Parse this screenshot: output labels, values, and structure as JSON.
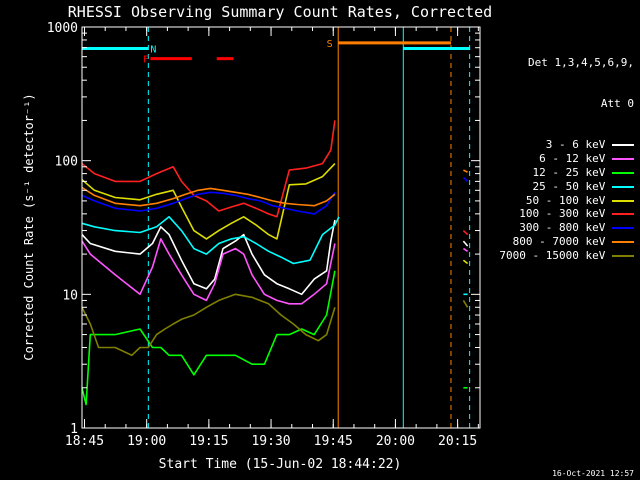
{
  "chart_data": {
    "type": "line",
    "title": "RHESSI Observing Summary Count Rates, Corrected",
    "xlabel": "Start Time (15-Jun-02 18:44:22)",
    "ylabel": "Corrected Count Rate (s⁻¹ detector⁻¹)",
    "x_unit": "minutes after 18:44:22",
    "xlim": [
      0,
      96
    ],
    "ylim": [
      1,
      1000
    ],
    "y_scale": "log",
    "x_ticks": [
      {
        "t": 0.6,
        "label": "18:45"
      },
      {
        "t": 15.6,
        "label": "19:00"
      },
      {
        "t": 30.6,
        "label": "19:15"
      },
      {
        "t": 45.6,
        "label": "19:30"
      },
      {
        "t": 60.6,
        "label": "19:45"
      },
      {
        "t": 75.6,
        "label": "20:00"
      },
      {
        "t": 90.6,
        "label": "20:15"
      }
    ],
    "y_ticks": [
      {
        "v": 1,
        "label": "1"
      },
      {
        "v": 10,
        "label": "10"
      },
      {
        "v": 100,
        "label": "100"
      },
      {
        "v": 1000,
        "label": "1000"
      }
    ],
    "legend_header": [
      "Det 1,3,4,5,6,9,",
      "Att 0"
    ],
    "legend_position": "right",
    "series": [
      {
        "name": "3 - 6 keV",
        "color": "#ffffff",
        "segments": [
          [
            [
              0,
              28
            ],
            [
              2,
              24
            ],
            [
              8,
              21
            ],
            [
              14,
              20
            ],
            [
              17,
              24
            ],
            [
              19,
              32
            ],
            [
              21,
              28
            ],
            [
              24,
              18
            ],
            [
              27,
              12
            ],
            [
              30,
              11
            ],
            [
              32,
              13
            ],
            [
              34,
              22
            ],
            [
              37,
              25
            ],
            [
              39,
              28
            ],
            [
              41,
              20
            ],
            [
              44,
              14
            ],
            [
              47,
              12
            ],
            [
              50,
              11
            ],
            [
              53,
              10
            ],
            [
              56,
              13
            ],
            [
              59,
              15
            ],
            [
              60,
              25
            ],
            [
              61,
              36
            ]
          ],
          [
            [
              92,
              25
            ],
            [
              93,
              23
            ]
          ]
        ]
      },
      {
        "name": "6 - 12 keV",
        "color": "#ff55ff",
        "segments": [
          [
            [
              0,
              25
            ],
            [
              2,
              20
            ],
            [
              8,
              14
            ],
            [
              14,
              10
            ],
            [
              17,
              16
            ],
            [
              19,
              26
            ],
            [
              21,
              20
            ],
            [
              24,
              14
            ],
            [
              27,
              10
            ],
            [
              30,
              9
            ],
            [
              32,
              12
            ],
            [
              34,
              20
            ],
            [
              37,
              22
            ],
            [
              39,
              20
            ],
            [
              41,
              14
            ],
            [
              44,
              10
            ],
            [
              47,
              9
            ],
            [
              50,
              8.5
            ],
            [
              53,
              8.5
            ],
            [
              56,
              10
            ],
            [
              59,
              12
            ],
            [
              61,
              24
            ]
          ],
          [
            [
              92,
              22
            ],
            [
              93,
              21
            ]
          ]
        ]
      },
      {
        "name": "12 - 25 keV",
        "color": "#00ff00",
        "segments": [
          [
            [
              0,
              2
            ],
            [
              1,
              1.5
            ],
            [
              2,
              5
            ],
            [
              8,
              5
            ],
            [
              14,
              5.5
            ],
            [
              17,
              4
            ],
            [
              19,
              4
            ],
            [
              21,
              3.5
            ],
            [
              24,
              3.5
            ],
            [
              27,
              2.5
            ],
            [
              30,
              3.5
            ],
            [
              33,
              3.5
            ],
            [
              37,
              3.5
            ],
            [
              41,
              3
            ],
            [
              44,
              3
            ],
            [
              47,
              5
            ],
            [
              50,
              5
            ],
            [
              53,
              5.5
            ],
            [
              56,
              5
            ],
            [
              59,
              7
            ],
            [
              61,
              15
            ]
          ],
          [
            [
              92,
              2
            ],
            [
              93,
              2
            ]
          ]
        ]
      },
      {
        "name": "25 - 50 keV",
        "color": "#00ffff",
        "segments": [
          [
            [
              0,
              34
            ],
            [
              3,
              32
            ],
            [
              8,
              30
            ],
            [
              14,
              29
            ],
            [
              18,
              32
            ],
            [
              21,
              38
            ],
            [
              24,
              30
            ],
            [
              27,
              22
            ],
            [
              30,
              20
            ],
            [
              33,
              24
            ],
            [
              36,
              26
            ],
            [
              39,
              27
            ],
            [
              42,
              24
            ],
            [
              45,
              21
            ],
            [
              48,
              19
            ],
            [
              51,
              17
            ],
            [
              55,
              18
            ],
            [
              58,
              28
            ],
            [
              61,
              33
            ],
            [
              62,
              38
            ]
          ],
          [
            [
              92,
              10
            ],
            [
              93,
              10
            ]
          ]
        ]
      },
      {
        "name": "50 - 100 keV",
        "color": "#dddd00",
        "segments": [
          [
            [
              0,
              72
            ],
            [
              3,
              60
            ],
            [
              8,
              53
            ],
            [
              14,
              51
            ],
            [
              18,
              56
            ],
            [
              22,
              60
            ],
            [
              24,
              45
            ],
            [
              27,
              30
            ],
            [
              30,
              26
            ],
            [
              33,
              30
            ],
            [
              36,
              34
            ],
            [
              39,
              38
            ],
            [
              42,
              33
            ],
            [
              45,
              28
            ],
            [
              47,
              26
            ],
            [
              50,
              66
            ],
            [
              54,
              67
            ],
            [
              58,
              76
            ],
            [
              61,
              95
            ]
          ],
          [
            [
              92,
              18
            ],
            [
              93,
              17
            ]
          ]
        ]
      },
      {
        "name": "100 - 300 keV",
        "color": "#ff2020",
        "segments": [
          [
            [
              0,
              95
            ],
            [
              3,
              80
            ],
            [
              8,
              70
            ],
            [
              14,
              70
            ],
            [
              18,
              80
            ],
            [
              22,
              90
            ],
            [
              24,
              70
            ],
            [
              27,
              55
            ],
            [
              30,
              50
            ],
            [
              33,
              42
            ],
            [
              36,
              45
            ],
            [
              39,
              48
            ],
            [
              42,
              44
            ],
            [
              45,
              40
            ],
            [
              47,
              38
            ],
            [
              50,
              85
            ],
            [
              54,
              88
            ],
            [
              58,
              95
            ],
            [
              60,
              120
            ],
            [
              61,
              200
            ]
          ],
          [
            [
              92,
              30
            ],
            [
              93,
              28
            ]
          ]
        ]
      },
      {
        "name": "300 - 800 keV",
        "color": "#0000ff",
        "segments": [
          [
            [
              0,
              55
            ],
            [
              3,
              50
            ],
            [
              8,
              44
            ],
            [
              14,
              42
            ],
            [
              18,
              44
            ],
            [
              22,
              48
            ],
            [
              25,
              52
            ],
            [
              28,
              56
            ],
            [
              31,
              58
            ],
            [
              34,
              57
            ],
            [
              37,
              55
            ],
            [
              40,
              52
            ],
            [
              43,
              50
            ],
            [
              46,
              46
            ],
            [
              49,
              44
            ],
            [
              52,
              42
            ],
            [
              56,
              40
            ],
            [
              59,
              46
            ],
            [
              61,
              58
            ]
          ],
          [
            [
              92,
              75
            ],
            [
              93,
              70
            ]
          ]
        ]
      },
      {
        "name": "800 - 7000 keV",
        "color": "#ff8000",
        "segments": [
          [
            [
              0,
              63
            ],
            [
              3,
              55
            ],
            [
              8,
              48
            ],
            [
              14,
              46
            ],
            [
              18,
              48
            ],
            [
              22,
              52
            ],
            [
              25,
              56
            ],
            [
              28,
              60
            ],
            [
              31,
              62
            ],
            [
              34,
              60
            ],
            [
              37,
              58
            ],
            [
              40,
              56
            ],
            [
              43,
              53
            ],
            [
              46,
              50
            ],
            [
              49,
              48
            ],
            [
              52,
              47
            ],
            [
              56,
              46
            ],
            [
              59,
              50
            ],
            [
              61,
              56
            ]
          ],
          [
            [
              92,
              85
            ],
            [
              93,
              82
            ]
          ]
        ]
      },
      {
        "name": "7000 - 15000 keV",
        "color": "#808000",
        "segments": [
          [
            [
              0,
              8
            ],
            [
              2,
              6
            ],
            [
              4,
              4
            ],
            [
              8,
              4
            ],
            [
              12,
              3.5
            ],
            [
              14,
              4
            ],
            [
              16,
              4
            ],
            [
              18,
              5
            ],
            [
              20,
              5.5
            ],
            [
              22,
              6
            ],
            [
              24,
              6.5
            ],
            [
              27,
              7
            ],
            [
              30,
              8
            ],
            [
              33,
              9
            ],
            [
              37,
              10
            ],
            [
              41,
              9.5
            ],
            [
              45,
              8.5
            ],
            [
              48,
              7
            ],
            [
              51,
              6
            ],
            [
              54,
              5
            ],
            [
              57,
              4.5
            ],
            [
              59,
              5
            ],
            [
              61,
              8
            ]
          ],
          [
            [
              92,
              9
            ],
            [
              93,
              8
            ]
          ]
        ]
      }
    ],
    "vertical_markers": [
      {
        "t": 16.0,
        "color": "#00ffff",
        "style": "dashed"
      },
      {
        "t": 61.8,
        "color": "#ff8000",
        "style": "solid"
      },
      {
        "t": 77.5,
        "color": "#00ffff",
        "style": "solid"
      },
      {
        "t": 89.0,
        "color": "#ff8000",
        "style": "dashed"
      },
      {
        "t": 93.5,
        "color": "#00ffff",
        "style": "dashed"
      }
    ],
    "flag_bars": [
      {
        "label": "N",
        "color": "#00ffff",
        "value": 690,
        "ranges": [
          [
            0,
            16.0
          ],
          [
            77.5,
            93.5
          ]
        ],
        "label_at": 16.5
      },
      {
        "label": "F",
        "color": "#ff0000",
        "value": 580,
        "ranges": [
          [
            16.5,
            26.5
          ],
          [
            32.5,
            36.5
          ]
        ],
        "label_at": 14.7
      },
      {
        "label": "S",
        "color": "#ff8000",
        "value": 760,
        "ranges": [
          [
            61.8,
            89.0
          ]
        ],
        "label_at": 59.0
      }
    ]
  },
  "footer": {
    "timestamp": "16-Oct-2021 12:57"
  }
}
